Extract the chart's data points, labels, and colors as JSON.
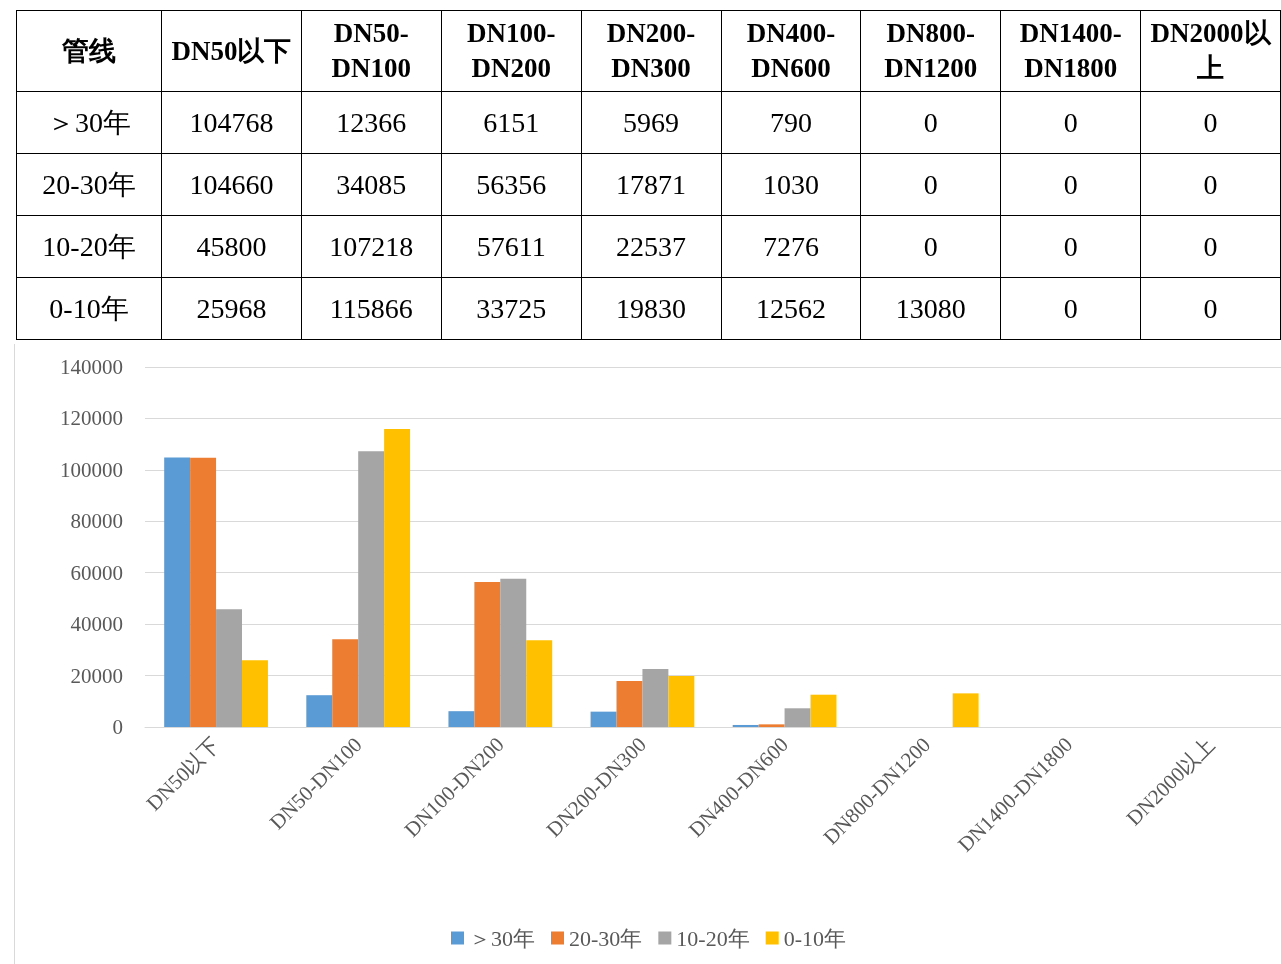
{
  "chart_data": {
    "type": "bar",
    "annotations": [
      "管线"
    ],
    "categories": [
      "DN50以下",
      "DN50-DN100",
      "DN100-DN200",
      "DN200-DN300",
      "DN400-DN600",
      "DN800-DN1200",
      "DN1400-DN1800",
      "DN2000以上"
    ],
    "series": [
      {
        "name": "＞30年",
        "color": "#5b9bd5",
        "values": [
          104768,
          12366,
          6151,
          5969,
          790,
          0,
          0,
          0
        ]
      },
      {
        "name": "20-30年",
        "color": "#ed7d31",
        "values": [
          104660,
          34085,
          56356,
          17871,
          1030,
          0,
          0,
          0
        ]
      },
      {
        "name": "10-20年",
        "color": "#a5a5a5",
        "values": [
          45800,
          107218,
          57611,
          22537,
          7276,
          0,
          0,
          0
        ]
      },
      {
        "name": "0-10年",
        "color": "#ffc000",
        "values": [
          25968,
          115866,
          33725,
          19830,
          12562,
          13080,
          0,
          0
        ]
      }
    ],
    "ylim": [
      0,
      140000
    ],
    "yticks": [
      0,
      20000,
      40000,
      60000,
      80000,
      100000,
      120000,
      140000
    ],
    "grid": "y",
    "legend": "bottom",
    "data_labels": true
  }
}
